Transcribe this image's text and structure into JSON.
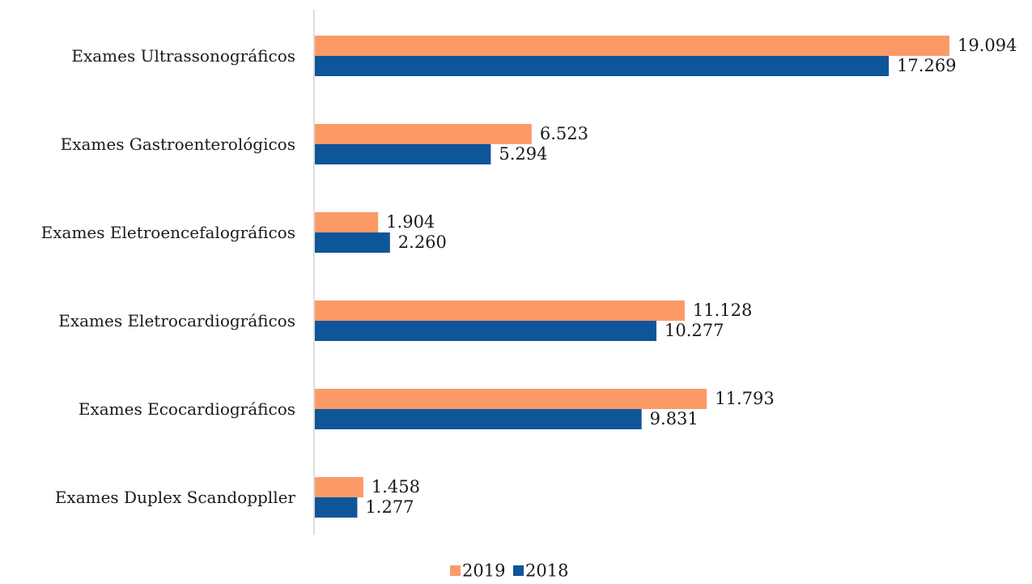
{
  "chart_data": {
    "type": "bar",
    "orientation": "horizontal",
    "categories": [
      "Exames Ultrassonográficos",
      "Exames Gastroenterológicos",
      "Exames Eletroencefalográficos",
      "Exames Eletrocardiográficos",
      "Exames Ecocardiográficos",
      "Exames Duplex Scandoppller"
    ],
    "series": [
      {
        "name": "2019",
        "color": "#fb9a67",
        "values": [
          19094,
          6523,
          1904,
          11128,
          11793,
          1458
        ],
        "labels": [
          "19.094",
          "6.523",
          "1.904",
          "11.128",
          "11.793",
          "1.458"
        ]
      },
      {
        "name": "2018",
        "color": "#0f5599",
        "values": [
          17269,
          5294,
          2260,
          10277,
          9831,
          1277
        ],
        "labels": [
          "17.269",
          "5.294",
          "2.260",
          "10.277",
          "9.831",
          "1.277"
        ]
      }
    ],
    "xlim": [
      0,
      19094
    ],
    "grid": false,
    "legend_position": "bottom"
  }
}
